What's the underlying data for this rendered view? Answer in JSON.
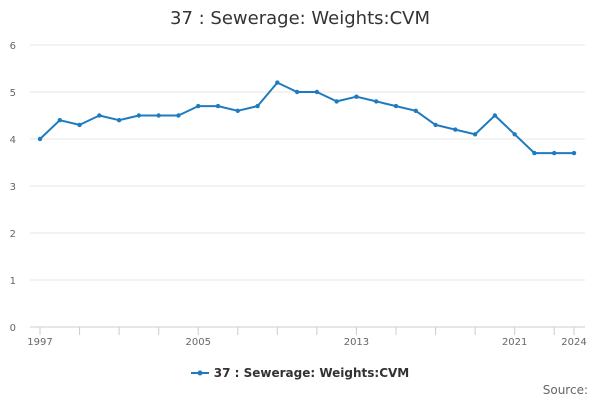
{
  "chart_data": {
    "type": "line",
    "title": "37 : Sewerage: Weights:CVM",
    "x": [
      1997,
      1998,
      1999,
      2000,
      2001,
      2002,
      2003,
      2004,
      2005,
      2006,
      2007,
      2008,
      2009,
      2010,
      2011,
      2012,
      2013,
      2014,
      2015,
      2016,
      2017,
      2018,
      2019,
      2020,
      2021,
      2022,
      2023,
      2024
    ],
    "series": [
      {
        "name": "37 : Sewerage: Weights:CVM",
        "color": "#1f7bbf",
        "values": [
          4.0,
          4.4,
          4.3,
          4.5,
          4.4,
          4.5,
          4.5,
          4.5,
          4.7,
          4.7,
          4.6,
          4.7,
          5.2,
          5.0,
          5.0,
          4.8,
          4.9,
          4.8,
          4.7,
          4.6,
          4.3,
          4.2,
          4.1,
          4.5,
          4.1,
          3.7,
          3.7,
          3.7
        ]
      }
    ],
    "xticks": [
      "1997",
      "2005",
      "2013",
      "2021",
      "2024"
    ],
    "yticks": [
      "0",
      "1",
      "2",
      "3",
      "4",
      "5",
      "6"
    ],
    "xlim": [
      1997,
      2024
    ],
    "ylim": [
      0,
      6
    ],
    "xlabel": "",
    "ylabel": "",
    "grid": true,
    "legend": "bottom-center"
  },
  "footer": {
    "source_label": "Source:"
  }
}
